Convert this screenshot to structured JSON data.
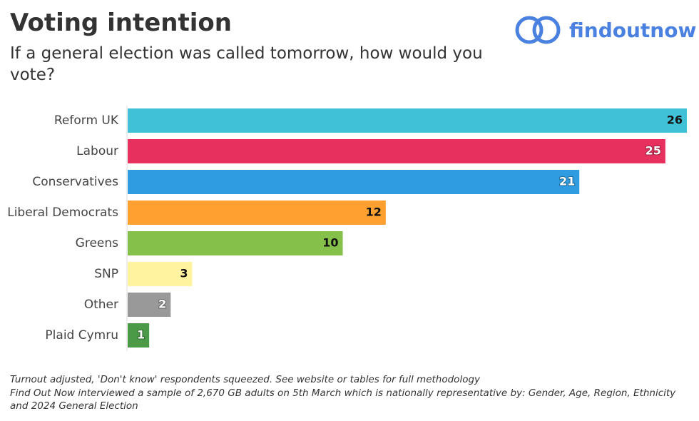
{
  "chart_data": {
    "type": "bar",
    "orientation": "horizontal",
    "title": "Voting intention",
    "subtitle": "If a general election was called tomorrow, how would you vote?",
    "brand": "findoutnow",
    "categories": [
      "Reform UK",
      "Labour",
      "Conservatives",
      "Liberal Democrats",
      "Greens",
      "SNP",
      "Other",
      "Plaid Cymru"
    ],
    "values": [
      26,
      25,
      21,
      12,
      10,
      3,
      2,
      1
    ],
    "colors": [
      "#40c1d8",
      "#e8305f",
      "#2f9be0",
      "#ffa030",
      "#84c04a",
      "#fff3a0",
      "#999999",
      "#4a9a48"
    ],
    "notes": [
      "Turnout adjusted, 'Don't know' respondents squeezed. See website or tables for full methodology",
      "Find Out Now interviewed a sample of 2,670 GB adults on 5th March which is nationally representative by: Gender, Age, Region, Ethnicity and 2024 General Election"
    ]
  }
}
